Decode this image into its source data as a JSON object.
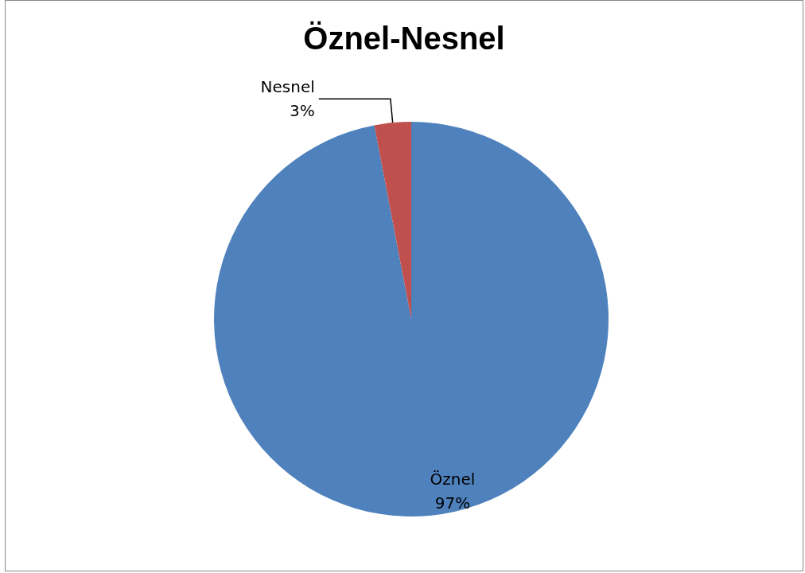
{
  "chart_data": {
    "type": "pie",
    "title": "Öznel-Nesnel",
    "categories": [
      "Öznel",
      "Nesnel"
    ],
    "values": [
      97,
      3
    ],
    "colors": [
      "#4f81bd",
      "#c0504d"
    ],
    "value_labels": [
      "97%",
      "3%"
    ],
    "legend": false
  }
}
